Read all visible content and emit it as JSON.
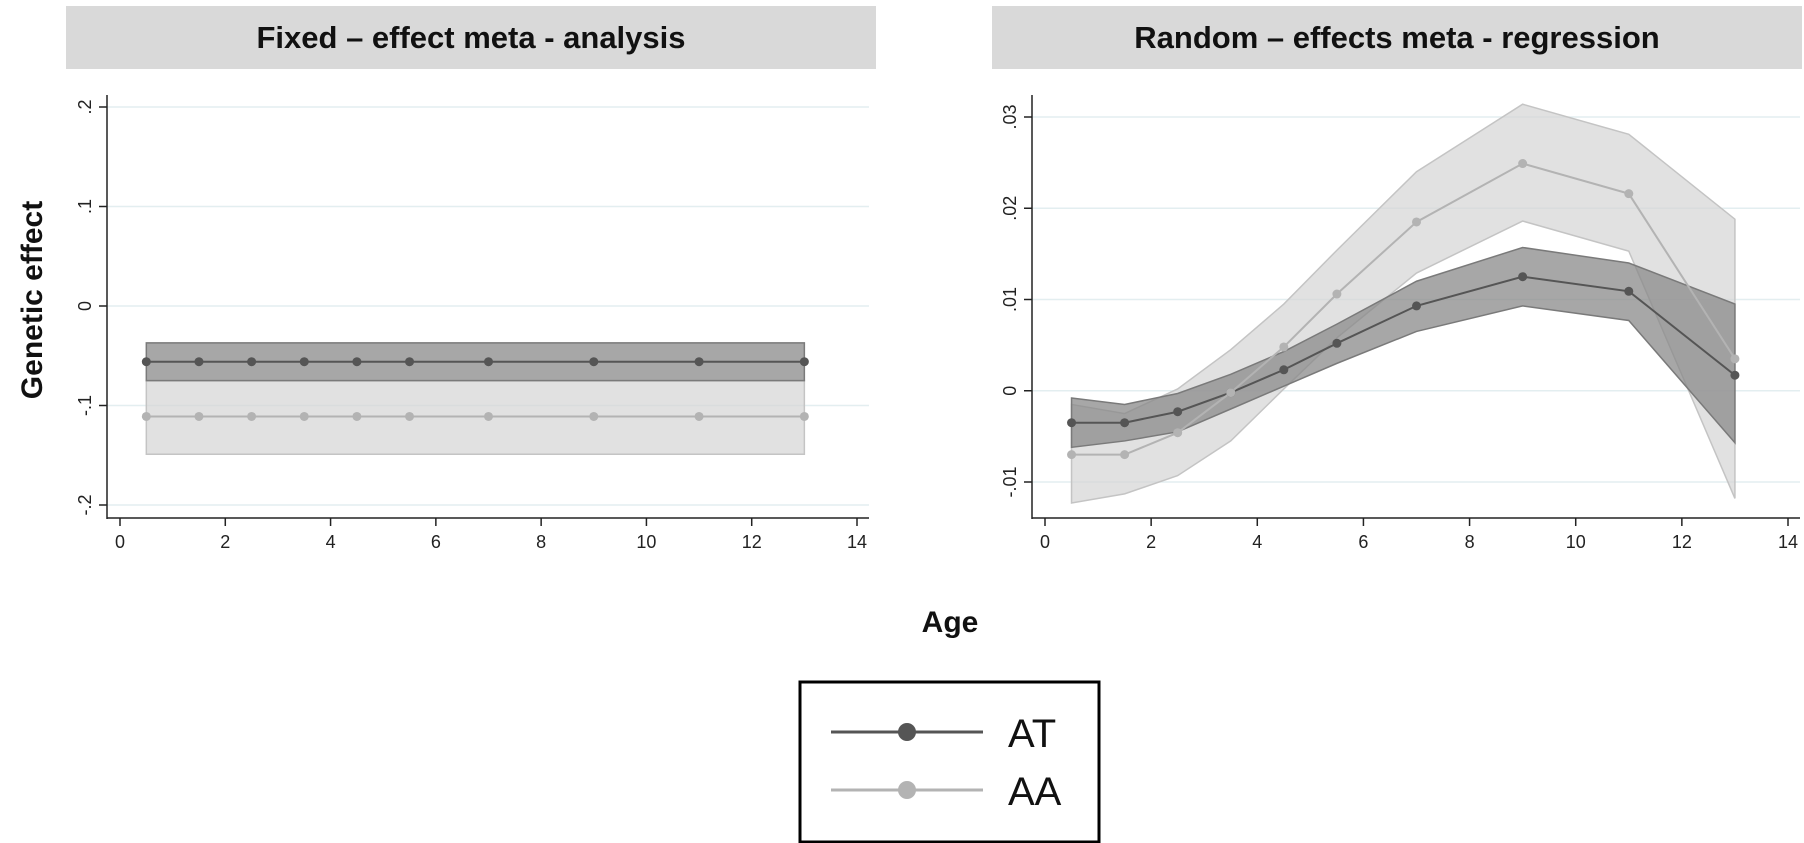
{
  "colors": {
    "strip_bg": "#d9d9d9",
    "AT_line": "#555555",
    "AA_line": "#b3b3b3",
    "AT_band": "#8a8a8a",
    "AA_band": "#d4d4d4",
    "grid": "#e3eef0"
  },
  "shared": {
    "ylabel": "Genetic effect",
    "xlabel": "Age",
    "legend": [
      {
        "name": "AT",
        "color": "#555555"
      },
      {
        "name": "AA",
        "color": "#b3b3b3"
      }
    ]
  },
  "chart_data": [
    {
      "type": "line",
      "title": "Fixed – effect meta - analysis",
      "xlabel": "Age",
      "ylabel": "Genetic effect",
      "xlim": [
        0,
        14
      ],
      "ylim": [
        -0.2,
        0.2
      ],
      "xticks": [
        0,
        2,
        4,
        6,
        8,
        10,
        12,
        14
      ],
      "xtick_labels": [
        "0",
        "2",
        "4",
        "6",
        "8",
        "10",
        "12",
        "14"
      ],
      "yticks": [
        -0.2,
        -0.1,
        0,
        0.1,
        0.2
      ],
      "ytick_labels": [
        "-.2",
        "-.1",
        "0",
        ".1",
        ".2"
      ],
      "grid": true,
      "x": [
        0.5,
        1.5,
        2.5,
        3.5,
        4.5,
        5.5,
        7,
        9,
        11,
        13
      ],
      "series": [
        {
          "name": "AT",
          "values": [
            -0.056,
            -0.056,
            -0.056,
            -0.056,
            -0.056,
            -0.056,
            -0.056,
            -0.056,
            -0.056,
            -0.056
          ],
          "ci_low": [
            -0.075,
            -0.075,
            -0.075,
            -0.075,
            -0.075,
            -0.075,
            -0.075,
            -0.075,
            -0.075,
            -0.075
          ],
          "ci_high": [
            -0.037,
            -0.037,
            -0.037,
            -0.037,
            -0.037,
            -0.037,
            -0.037,
            -0.037,
            -0.037,
            -0.037
          ]
        },
        {
          "name": "AA",
          "values": [
            -0.111,
            -0.111,
            -0.111,
            -0.111,
            -0.111,
            -0.111,
            -0.111,
            -0.111,
            -0.111,
            -0.111
          ],
          "ci_low": [
            -0.149,
            -0.149,
            -0.149,
            -0.149,
            -0.149,
            -0.149,
            -0.149,
            -0.149,
            -0.149,
            -0.149
          ],
          "ci_high": [
            -0.075,
            -0.075,
            -0.075,
            -0.075,
            -0.075,
            -0.075,
            -0.075,
            -0.075,
            -0.075,
            -0.075
          ]
        }
      ]
    },
    {
      "type": "line",
      "title": "Random – effects meta - regression",
      "xlabel": "Age",
      "ylabel": "Genetic effect",
      "xlim": [
        0,
        14
      ],
      "ylim": [
        -0.013,
        0.031
      ],
      "xticks": [
        0,
        2,
        4,
        6,
        8,
        10,
        12,
        14
      ],
      "xtick_labels": [
        "0",
        "2",
        "4",
        "6",
        "8",
        "10",
        "12",
        "14"
      ],
      "yticks": [
        -0.01,
        0,
        0.01,
        0.02,
        0.03
      ],
      "ytick_labels": [
        "-.01",
        "0",
        ".01",
        ".02",
        ".03"
      ],
      "grid": true,
      "x": [
        0.5,
        1.5,
        2.5,
        3.5,
        4.5,
        5.5,
        7,
        9,
        11,
        13
      ],
      "series": [
        {
          "name": "AT",
          "values": [
            -0.0035,
            -0.0035,
            -0.0023,
            -0.0002,
            0.0023,
            0.0052,
            0.0093,
            0.0125,
            0.0109,
            0.0017
          ],
          "ci_low": [
            -0.0062,
            -0.0055,
            -0.0045,
            -0.002,
            0.0005,
            0.003,
            0.0065,
            0.0093,
            0.0077,
            -0.0057
          ],
          "ci_high": [
            -0.0008,
            -0.0015,
            -0.0003,
            0.0018,
            0.0043,
            0.0073,
            0.012,
            0.0157,
            0.014,
            0.0095
          ]
        },
        {
          "name": "AA",
          "values": [
            -0.007,
            -0.007,
            -0.0046,
            -0.0002,
            0.0048,
            0.0106,
            0.0185,
            0.0249,
            0.0216,
            0.0035
          ],
          "ci_low": [
            -0.0123,
            -0.0113,
            -0.0093,
            -0.0055,
            0.0002,
            0.0058,
            0.0129,
            0.0186,
            0.0153,
            -0.0118
          ],
          "ci_high": [
            -0.0015,
            -0.0025,
            0.0002,
            0.0045,
            0.0095,
            0.0154,
            0.024,
            0.0314,
            0.0281,
            0.0188
          ]
        }
      ]
    }
  ]
}
